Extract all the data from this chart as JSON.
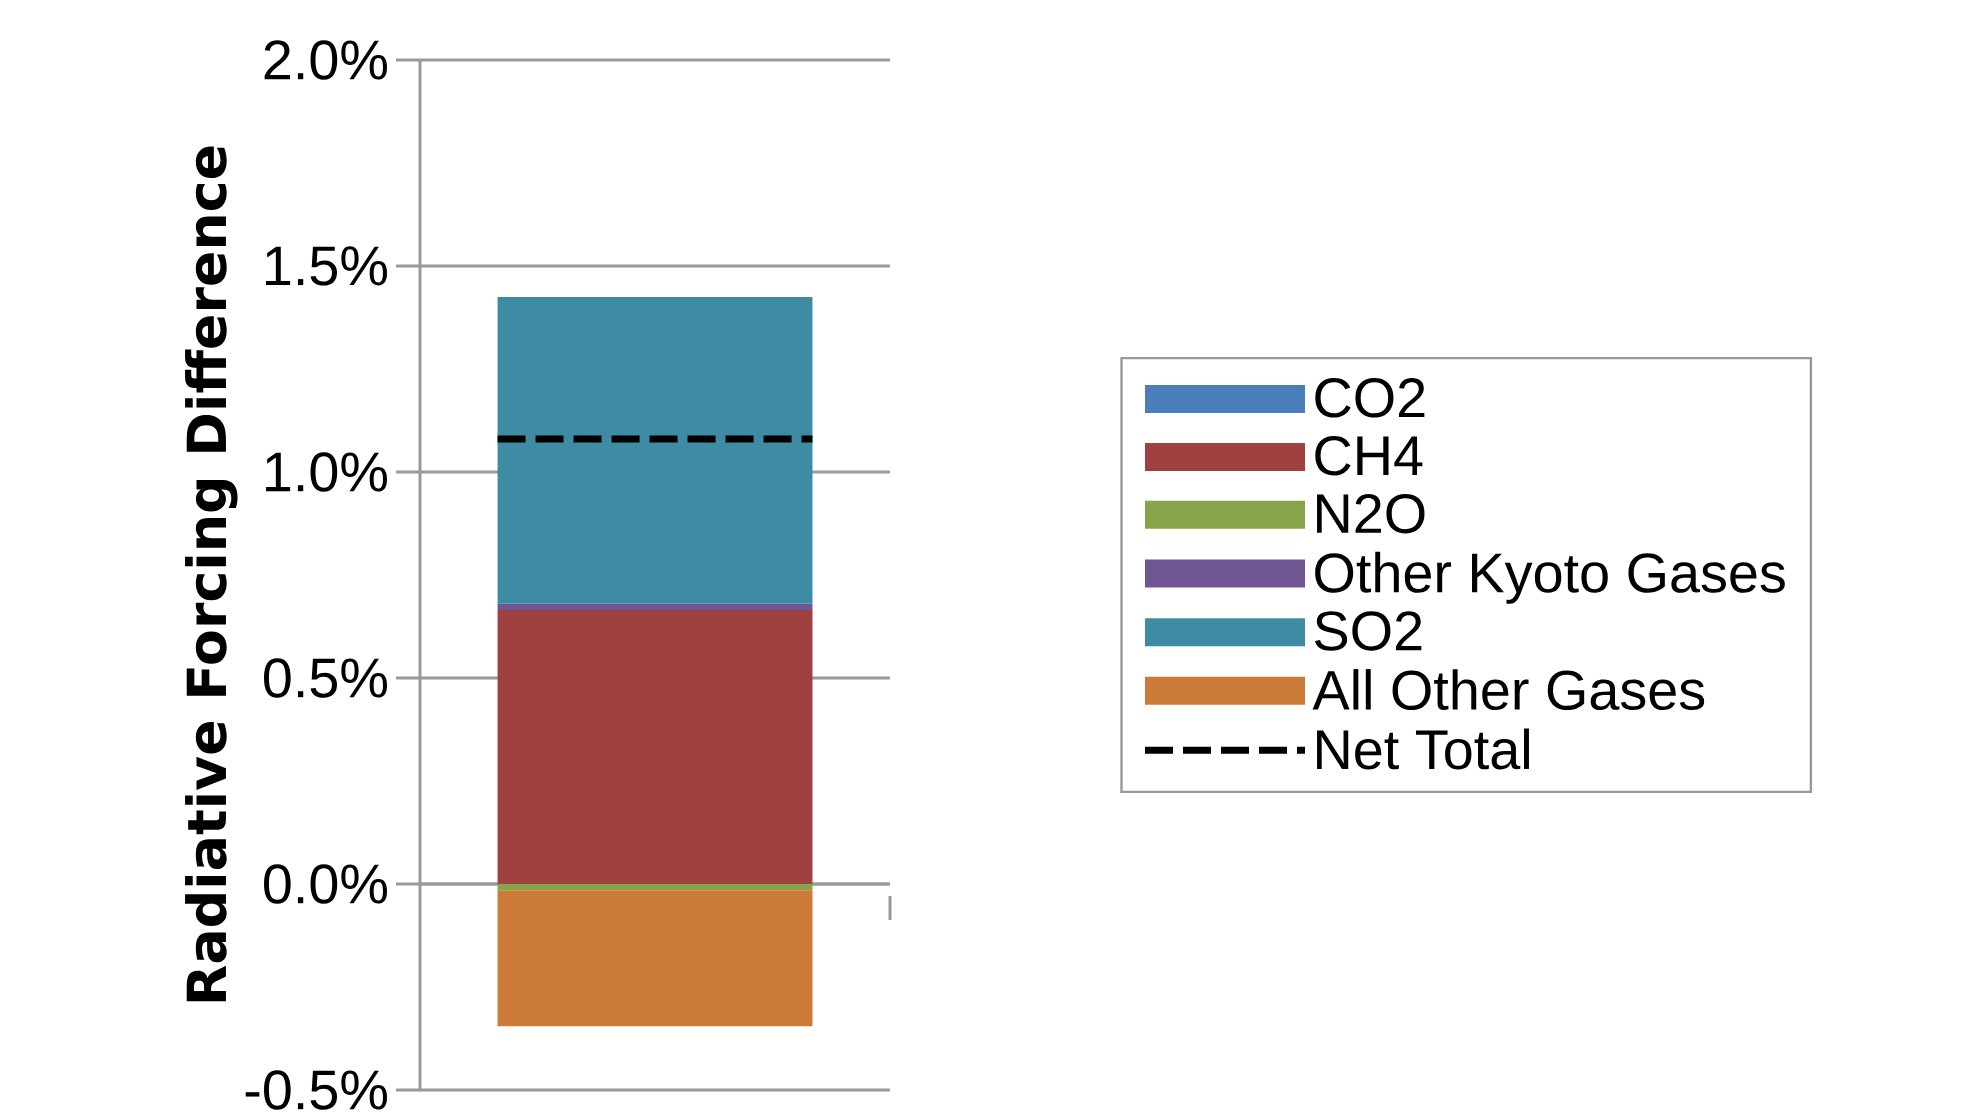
{
  "chart_data": {
    "type": "bar",
    "stacked": true,
    "ylabel": "Radiative Forcing Difference",
    "categories": [
      null
    ],
    "series": [
      {
        "name": "CO2",
        "color": "#4a7ebb",
        "values": [
          0
        ]
      },
      {
        "name": "CH4",
        "color": "#9e4140",
        "values": [
          0.665
        ]
      },
      {
        "name": "N2O",
        "color": "#86a44a",
        "values": [
          -0.015
        ]
      },
      {
        "name": "Other Kyoto Gases",
        "color": "#6f5592",
        "values": [
          0.015
        ]
      },
      {
        "name": "SO2",
        "color": "#3d8ca3",
        "values": [
          0.745
        ]
      },
      {
        "name": "All Other Gases",
        "color": "#cc7b38",
        "values": [
          -0.33
        ]
      }
    ],
    "ref_lines": [
      {
        "axis": "y",
        "value": 1.08,
        "label": "Net Total",
        "color": "#000000",
        "line_style": "dashed"
      }
    ],
    "ylim": [
      -0.5,
      2.0
    ],
    "yticks": [
      {
        "value": -0.5,
        "label": "-0.5%"
      },
      {
        "value": 0,
        "label": "0.0%"
      },
      {
        "value": 0.5,
        "label": "0.5%"
      },
      {
        "value": 1.0,
        "label": "1.0%"
      },
      {
        "value": 1.5,
        "label": "1.5%"
      },
      {
        "value": 2.0,
        "label": "2.0%"
      }
    ],
    "grid": "y",
    "legend": "right"
  }
}
